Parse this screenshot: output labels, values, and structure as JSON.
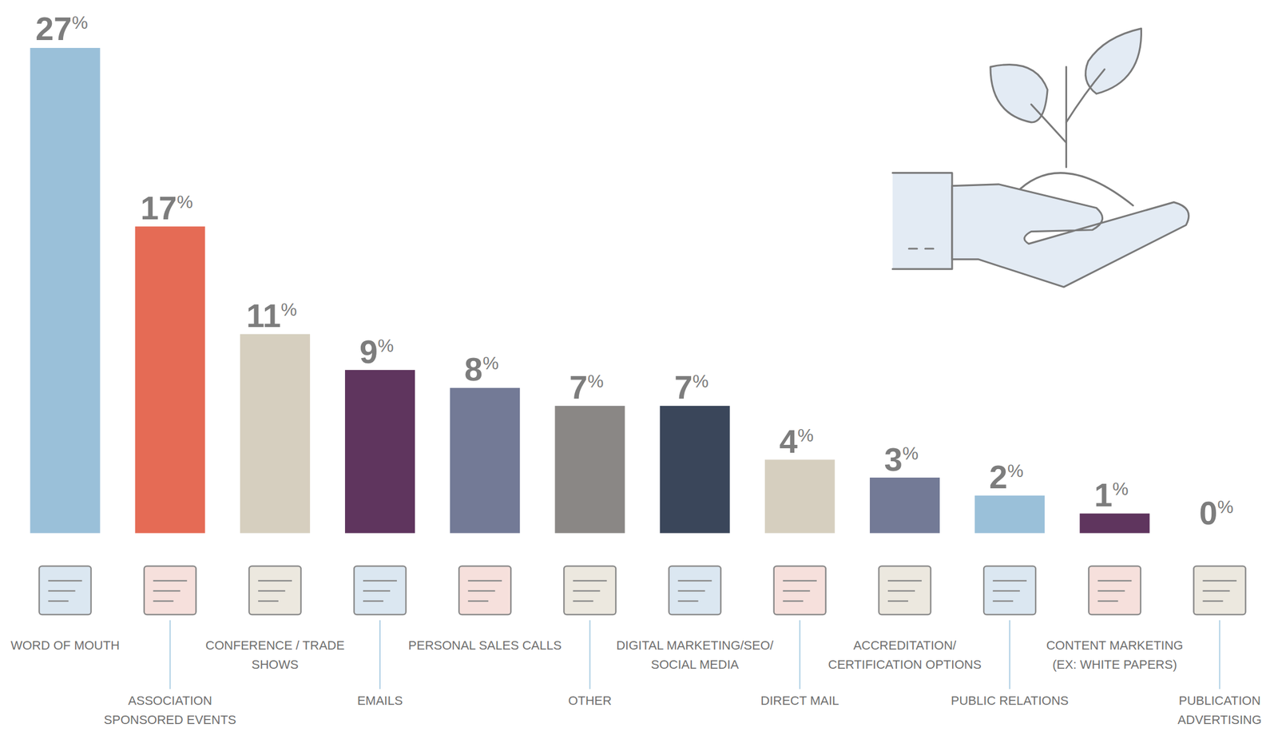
{
  "chart_data": {
    "type": "bar",
    "categories": [
      "WORD OF MOUTH",
      "ASSOCIATION SPONSORED EVENTS",
      "CONFERENCE / TRADE SHOWS",
      "EMAILS",
      "PERSONAL SALES CALLS",
      "OTHER",
      "DIGITAL MARKETING/SEO/SOCIAL MEDIA",
      "DIRECT MAIL",
      "ACCREDITATION/CERTIFICATION OPTIONS",
      "PUBLIC RELATIONS",
      "CONTENT MARKETING (EX: WHITE PAPERS)",
      "PUBLICATION ADVERTISING"
    ],
    "values": [
      27,
      17,
      11,
      9,
      8,
      7,
      7,
      4,
      3,
      2,
      1,
      0
    ],
    "value_labels": [
      "27%",
      "17%",
      "11%",
      "9%",
      "8%",
      "7%",
      "7%",
      "4%",
      "3%",
      "2%",
      "1%",
      "0%"
    ],
    "colors": [
      "#9ac0d9",
      "#e56b55",
      "#d6cfbf",
      "#5f355e",
      "#737a96",
      "#8a8785",
      "#3a465a",
      "#d6cfbf",
      "#737a96",
      "#9ac0d9",
      "#5f355e",
      "#e56b55"
    ],
    "ylim": [
      0,
      27
    ],
    "data_labels": true,
    "tick_labels": "x",
    "grid": false
  }
}
